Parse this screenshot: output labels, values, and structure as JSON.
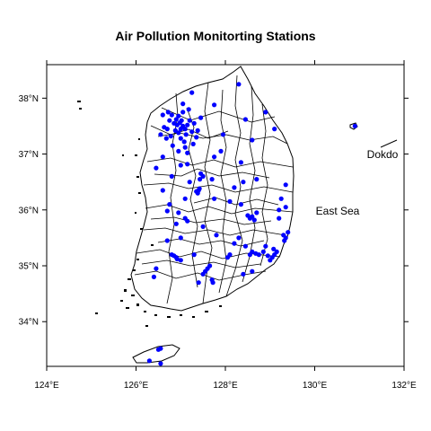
{
  "chart_data": {
    "type": "scatter",
    "title": "Air Pollution Monitorting Stations",
    "xlim": [
      124,
      132
    ],
    "ylim": [
      33.2,
      38.6
    ],
    "x_ticks": [
      124,
      126,
      128,
      130,
      132
    ],
    "x_tick_labels": [
      "124°E",
      "126°E",
      "128°E",
      "130°E",
      "132°E"
    ],
    "y_ticks": [
      34,
      35,
      36,
      37,
      38
    ],
    "y_tick_labels": [
      "34°N",
      "35°N",
      "36°N",
      "37°N",
      "38°N"
    ],
    "annotations": [
      {
        "text": "East Sea",
        "lon": 130.5,
        "lat": 35.98
      },
      {
        "text": "Dokdo",
        "lon": 131.55,
        "lat": 37.0
      }
    ],
    "point_color": "#0000ff",
    "stations": [
      {
        "lon": 126.98,
        "lat": 37.56
      },
      {
        "lon": 126.92,
        "lat": 37.52
      },
      {
        "lon": 127.05,
        "lat": 37.5
      },
      {
        "lon": 127.02,
        "lat": 37.6
      },
      {
        "lon": 126.85,
        "lat": 37.55
      },
      {
        "lon": 127.1,
        "lat": 37.45
      },
      {
        "lon": 126.7,
        "lat": 37.45
      },
      {
        "lon": 126.63,
        "lat": 37.48
      },
      {
        "lon": 126.78,
        "lat": 37.32
      },
      {
        "lon": 127.0,
        "lat": 37.28
      },
      {
        "lon": 127.12,
        "lat": 37.35
      },
      {
        "lon": 126.95,
        "lat": 37.68
      },
      {
        "lon": 127.2,
        "lat": 37.6
      },
      {
        "lon": 126.8,
        "lat": 37.7
      },
      {
        "lon": 127.05,
        "lat": 37.75
      },
      {
        "lon": 126.88,
        "lat": 37.42
      },
      {
        "lon": 127.15,
        "lat": 37.52
      },
      {
        "lon": 126.75,
        "lat": 37.6
      },
      {
        "lon": 127.25,
        "lat": 37.4
      },
      {
        "lon": 126.95,
        "lat": 37.38
      },
      {
        "lon": 127.08,
        "lat": 37.22
      },
      {
        "lon": 126.72,
        "lat": 37.75
      },
      {
        "lon": 127.0,
        "lat": 37.45
      },
      {
        "lon": 126.9,
        "lat": 37.62
      },
      {
        "lon": 127.3,
        "lat": 37.55
      },
      {
        "lon": 127.35,
        "lat": 37.3
      },
      {
        "lon": 127.1,
        "lat": 37.12
      },
      {
        "lon": 126.6,
        "lat": 37.7
      },
      {
        "lon": 127.18,
        "lat": 37.8
      },
      {
        "lon": 127.05,
        "lat": 37.9
      },
      {
        "lon": 126.55,
        "lat": 37.35
      },
      {
        "lon": 127.45,
        "lat": 37.65
      },
      {
        "lon": 126.82,
        "lat": 37.15
      },
      {
        "lon": 127.38,
        "lat": 37.42
      },
      {
        "lon": 126.68,
        "lat": 37.28
      },
      {
        "lon": 127.28,
        "lat": 37.18
      },
      {
        "lon": 126.95,
        "lat": 37.05
      },
      {
        "lon": 127.15,
        "lat": 37.02
      },
      {
        "lon": 127.25,
        "lat": 38.1
      },
      {
        "lon": 128.3,
        "lat": 38.25
      },
      {
        "lon": 127.75,
        "lat": 37.88
      },
      {
        "lon": 128.9,
        "lat": 37.75
      },
      {
        "lon": 127.95,
        "lat": 37.35
      },
      {
        "lon": 129.1,
        "lat": 37.45
      },
      {
        "lon": 128.45,
        "lat": 37.62
      },
      {
        "lon": 127.9,
        "lat": 37.05
      },
      {
        "lon": 128.6,
        "lat": 37.25
      },
      {
        "lon": 126.45,
        "lat": 36.75
      },
      {
        "lon": 126.6,
        "lat": 36.95
      },
      {
        "lon": 127.0,
        "lat": 36.8
      },
      {
        "lon": 127.15,
        "lat": 36.82
      },
      {
        "lon": 127.45,
        "lat": 36.65
      },
      {
        "lon": 127.5,
        "lat": 36.6
      },
      {
        "lon": 127.43,
        "lat": 36.55
      },
      {
        "lon": 127.2,
        "lat": 36.5
      },
      {
        "lon": 126.8,
        "lat": 36.6
      },
      {
        "lon": 127.75,
        "lat": 36.95
      },
      {
        "lon": 127.7,
        "lat": 36.55
      },
      {
        "lon": 127.4,
        "lat": 36.35
      },
      {
        "lon": 127.38,
        "lat": 36.3
      },
      {
        "lon": 127.42,
        "lat": 36.38
      },
      {
        "lon": 127.35,
        "lat": 36.33
      },
      {
        "lon": 127.1,
        "lat": 36.2
      },
      {
        "lon": 126.6,
        "lat": 36.35
      },
      {
        "lon": 126.75,
        "lat": 36.1
      },
      {
        "lon": 127.75,
        "lat": 36.2
      },
      {
        "lon": 126.95,
        "lat": 35.95
      },
      {
        "lon": 127.15,
        "lat": 35.8
      },
      {
        "lon": 127.1,
        "lat": 35.85
      },
      {
        "lon": 126.7,
        "lat": 35.98
      },
      {
        "lon": 126.9,
        "lat": 35.75
      },
      {
        "lon": 127.5,
        "lat": 35.7
      },
      {
        "lon": 127.8,
        "lat": 35.55
      },
      {
        "lon": 126.9,
        "lat": 35.15
      },
      {
        "lon": 126.85,
        "lat": 35.18
      },
      {
        "lon": 126.92,
        "lat": 35.12
      },
      {
        "lon": 126.8,
        "lat": 35.2
      },
      {
        "lon": 127.0,
        "lat": 35.1
      },
      {
        "lon": 126.45,
        "lat": 34.95
      },
      {
        "lon": 126.4,
        "lat": 34.8
      },
      {
        "lon": 127.5,
        "lat": 34.85
      },
      {
        "lon": 127.6,
        "lat": 34.95
      },
      {
        "lon": 127.7,
        "lat": 34.75
      },
      {
        "lon": 127.55,
        "lat": 34.9
      },
      {
        "lon": 127.65,
        "lat": 35.0
      },
      {
        "lon": 127.4,
        "lat": 34.7
      },
      {
        "lon": 127.72,
        "lat": 34.7
      },
      {
        "lon": 127.3,
        "lat": 35.2
      },
      {
        "lon": 126.7,
        "lat": 35.45
      },
      {
        "lon": 127.0,
        "lat": 35.5
      },
      {
        "lon": 128.55,
        "lat": 35.85
      },
      {
        "lon": 128.6,
        "lat": 35.88
      },
      {
        "lon": 128.65,
        "lat": 35.82
      },
      {
        "lon": 128.5,
        "lat": 35.9
      },
      {
        "lon": 128.35,
        "lat": 36.1
      },
      {
        "lon": 128.7,
        "lat": 35.95
      },
      {
        "lon": 128.1,
        "lat": 36.15
      },
      {
        "lon": 128.4,
        "lat": 36.5
      },
      {
        "lon": 128.2,
        "lat": 36.4
      },
      {
        "lon": 128.7,
        "lat": 36.55
      },
      {
        "lon": 128.35,
        "lat": 36.85
      },
      {
        "lon": 129.35,
        "lat": 36.45
      },
      {
        "lon": 129.2,
        "lat": 36.0
      },
      {
        "lon": 129.35,
        "lat": 36.05
      },
      {
        "lon": 129.25,
        "lat": 36.2
      },
      {
        "lon": 129.2,
        "lat": 35.85
      },
      {
        "lon": 129.3,
        "lat": 35.55
      },
      {
        "lon": 129.35,
        "lat": 35.5
      },
      {
        "lon": 129.4,
        "lat": 35.6
      },
      {
        "lon": 129.32,
        "lat": 35.45
      },
      {
        "lon": 129.05,
        "lat": 35.15
      },
      {
        "lon": 129.1,
        "lat": 35.2
      },
      {
        "lon": 129.0,
        "lat": 35.1
      },
      {
        "lon": 129.15,
        "lat": 35.25
      },
      {
        "lon": 128.95,
        "lat": 35.18
      },
      {
        "lon": 129.08,
        "lat": 35.3
      },
      {
        "lon": 128.6,
        "lat": 35.25
      },
      {
        "lon": 128.68,
        "lat": 35.22
      },
      {
        "lon": 128.55,
        "lat": 35.2
      },
      {
        "lon": 128.75,
        "lat": 35.2
      },
      {
        "lon": 128.85,
        "lat": 35.25
      },
      {
        "lon": 128.45,
        "lat": 35.35
      },
      {
        "lon": 128.1,
        "lat": 35.2
      },
      {
        "lon": 128.05,
        "lat": 35.15
      },
      {
        "lon": 128.2,
        "lat": 35.4
      },
      {
        "lon": 128.3,
        "lat": 35.5
      },
      {
        "lon": 128.6,
        "lat": 34.9
      },
      {
        "lon": 128.4,
        "lat": 34.85
      },
      {
        "lon": 128.9,
        "lat": 35.35
      },
      {
        "lon": 126.5,
        "lat": 33.5
      },
      {
        "lon": 126.55,
        "lat": 33.52
      },
      {
        "lon": 126.3,
        "lat": 33.3
      },
      {
        "lon": 126.55,
        "lat": 33.25
      },
      {
        "lon": 130.9,
        "lat": 37.5
      }
    ]
  }
}
